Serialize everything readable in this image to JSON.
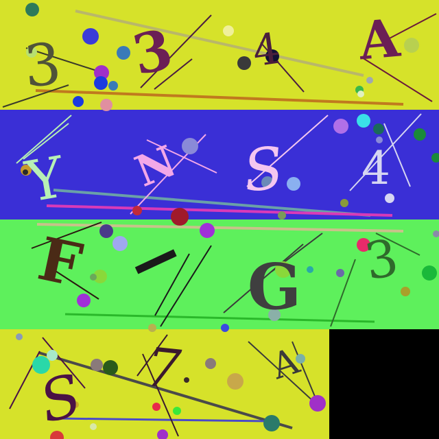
{
  "rows": [
    {
      "band_color": "#d6e22a",
      "glyphs": [
        {
          "text": "3",
          "color": "#4f5339"
        },
        {
          "text": "3",
          "color": "#6b1f55"
        },
        {
          "text": "4",
          "color": "#4a1f3c"
        },
        {
          "text": "A",
          "color": "#6b1f55"
        }
      ]
    },
    {
      "band_color": "#3a2fd6",
      "glyphs": [
        {
          "text": "Y",
          "color": "#b7f0b5"
        },
        {
          "text": "N",
          "color": "#f3a8e8"
        },
        {
          "text": "S",
          "color": "#f4c7f0"
        },
        {
          "text": "4",
          "color": "#d6d6f2"
        }
      ]
    },
    {
      "band_color": "#5ef05c",
      "glyphs": [
        {
          "text": "F",
          "color": "#4a2a16"
        },
        {
          "text": "-",
          "color": "#1a1a1a"
        },
        {
          "text": "G",
          "color": "#3f3f3f"
        },
        {
          "text": "3",
          "color": "#2f6a2b"
        }
      ]
    },
    {
      "band_color": "#d6e22a",
      "glyphs": [
        {
          "text": "S",
          "color": "#4a1245"
        },
        {
          "text": "7",
          "color": "#3a1a2e"
        },
        {
          "text": "A",
          "color": "#3a3a3a"
        }
      ]
    }
  ],
  "empty_tile_color": "#000000"
}
